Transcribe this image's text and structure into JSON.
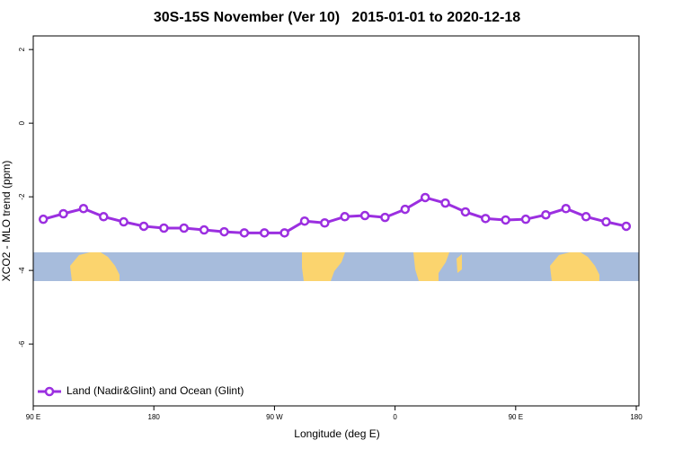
{
  "chart_data": {
    "type": "line",
    "title": "30S-15S November (Ver 10)   2015-01-01 to 2020-12-18",
    "x_label": "Longitude (deg E)",
    "y_label": "XCO2 - MLO trend (ppm)",
    "x": [
      97.5,
      112.5,
      127.5,
      142.5,
      157.5,
      172.5,
      187.5,
      202.5,
      217.5,
      232.5,
      247.5,
      262.5,
      277.5,
      292.5,
      307.5,
      322.5,
      337.5,
      352.5,
      367.5,
      382.5,
      397.5,
      412.5,
      427.5,
      442.5,
      457.5,
      472.5,
      487.5,
      502.5,
      517.5,
      532.5
    ],
    "series": [
      {
        "name": "Land (Nadir&Glint) and Ocean (Glint)",
        "color": "#9b2fe0",
        "values": [
          -2.61,
          -2.46,
          -2.32,
          -2.54,
          -2.68,
          -2.8,
          -2.85,
          -2.85,
          -2.9,
          -2.95,
          -2.98,
          -2.98,
          -2.98,
          -2.66,
          -2.71,
          -2.54,
          -2.51,
          -2.56,
          -2.34,
          -2.02,
          -2.17,
          -2.41,
          -2.59,
          -2.63,
          -2.61,
          -2.49,
          -2.32,
          -2.54,
          -2.68,
          -2.8
        ]
      }
    ],
    "xlim": [
      90,
      542
    ],
    "ylim": [
      -7.68,
      2.37
    ],
    "xticks": [
      {
        "value": 90,
        "label": "90 E"
      },
      {
        "value": 180,
        "label": "180"
      },
      {
        "value": 270,
        "label": "90 W"
      },
      {
        "value": 360,
        "label": "0"
      },
      {
        "value": 450,
        "label": "90 E"
      },
      {
        "value": 540,
        "label": "180"
      }
    ],
    "yticks": [
      2,
      0,
      -2,
      -4,
      -6
    ],
    "legend": "bottom-left"
  }
}
